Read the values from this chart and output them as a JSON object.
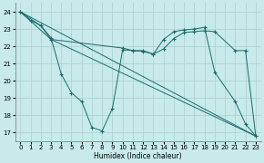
{
  "xlabel": "Humidex (Indice chaleur)",
  "background_color": "#c8eaea",
  "grid_color": "#b0d4d4",
  "line_color": "#1a6b6b",
  "xlim": [
    -0.5,
    23.5
  ],
  "ylim": [
    16.5,
    24.5
  ],
  "yticks": [
    17,
    18,
    19,
    20,
    21,
    22,
    23,
    24
  ],
  "xticks": [
    0,
    1,
    2,
    3,
    4,
    5,
    6,
    7,
    8,
    9,
    10,
    11,
    12,
    13,
    14,
    15,
    16,
    17,
    18,
    19,
    20,
    21,
    22,
    23
  ],
  "series": [
    {
      "x": [
        0,
        1,
        2,
        3,
        4,
        5,
        6,
        7,
        8,
        9,
        10,
        11,
        12,
        13,
        14,
        15,
        16,
        17,
        18,
        19,
        21,
        22,
        23
      ],
      "y": [
        24,
        23.5,
        23.2,
        22.5,
        20.4,
        19.3,
        18.8,
        17.3,
        17.1,
        18.4,
        21.8,
        21.75,
        21.75,
        21.55,
        22.4,
        22.85,
        22.95,
        23.0,
        23.1,
        20.5,
        18.8,
        17.5,
        16.8
      ],
      "marker": true
    },
    {
      "x": [
        0,
        2,
        3,
        10,
        11,
        12,
        13,
        14,
        15,
        16,
        17,
        18,
        19,
        21,
        22,
        23
      ],
      "y": [
        24,
        23.2,
        22.4,
        21.9,
        21.75,
        21.7,
        21.55,
        21.85,
        22.45,
        22.8,
        22.85,
        22.9,
        22.85,
        21.75,
        21.75,
        16.8
      ],
      "marker": true
    },
    {
      "x": [
        0,
        23
      ],
      "y": [
        24,
        16.8
      ],
      "marker": false
    },
    {
      "x": [
        0,
        3,
        23
      ],
      "y": [
        24,
        22.4,
        16.8
      ],
      "marker": false
    }
  ]
}
